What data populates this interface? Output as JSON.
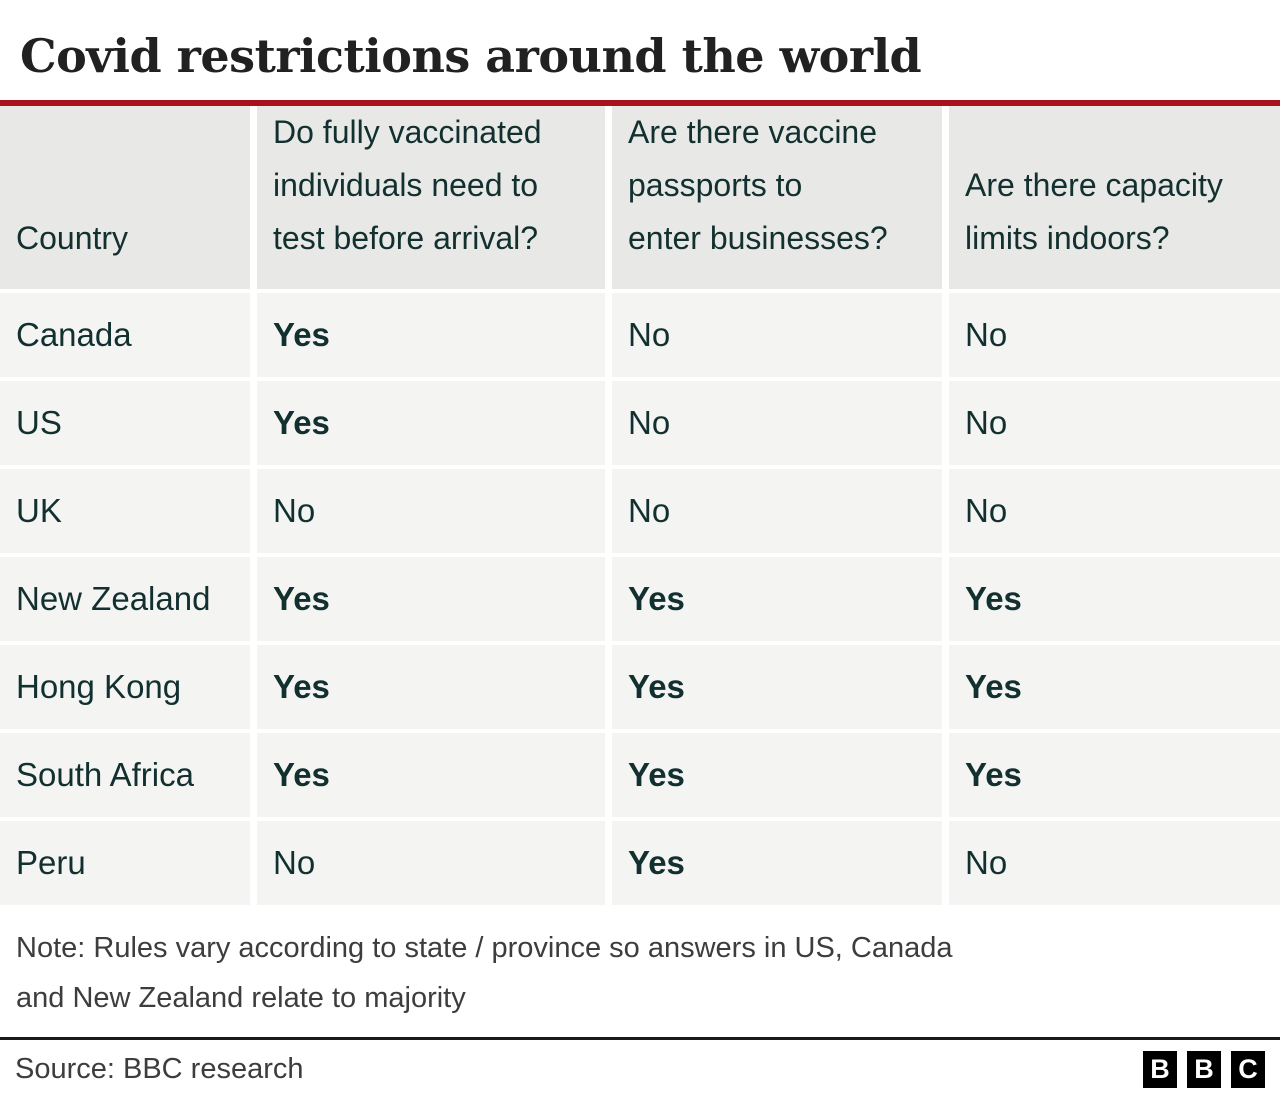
{
  "title": "Covid restrictions around the world",
  "chart_data": {
    "type": "table",
    "title": "Covid restrictions around the world",
    "columns": [
      "Country",
      "Do fully vaccinated\nindividuals need to\ntest before arrival?",
      "Are there vaccine\npassports to\nenter businesses?",
      "Are there capacity\nlimits indoors?"
    ],
    "rows": [
      [
        "Canada",
        "Yes",
        "No",
        "No"
      ],
      [
        "US",
        "Yes",
        "No",
        "No"
      ],
      [
        "UK",
        "No",
        "No",
        "No"
      ],
      [
        "New Zealand",
        "Yes",
        "Yes",
        "Yes"
      ],
      [
        "Hong Kong",
        "Yes",
        "Yes",
        "Yes"
      ],
      [
        "South Africa",
        "Yes",
        "Yes",
        "Yes"
      ],
      [
        "Peru",
        "No",
        "Yes",
        "No"
      ]
    ]
  },
  "note": "Note: Rules vary according to state / province so answers in US, Canada and New Zealand relate to majority",
  "source": "Source: BBC research",
  "logo": {
    "letters": [
      "B",
      "B",
      "C"
    ]
  },
  "colors": {
    "accent_red": "#a8121a",
    "header_bg": "#e8e8e6",
    "row_bg": "#f4f4f3",
    "table_text": "#12302f",
    "note_text": "#3d3d3d",
    "divider": "#1a1a1a"
  }
}
